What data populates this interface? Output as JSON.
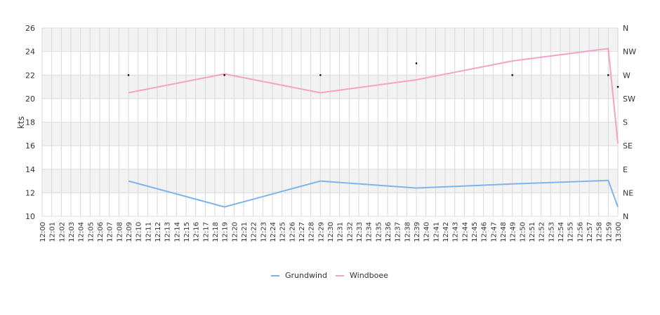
{
  "chart_data": {
    "type": "line",
    "ylabel": "kts",
    "ylim": [
      10,
      26
    ],
    "y_ticks": [
      10,
      12,
      14,
      16,
      18,
      20,
      22,
      24,
      26
    ],
    "x_start_label": "12:00",
    "x_tick_labels": [
      "12:00",
      "12:01",
      "12:02",
      "12:03",
      "12:04",
      "12:05",
      "12:06",
      "12:07",
      "12:08",
      "12:09",
      "12:10",
      "12:11",
      "12:12",
      "12:13",
      "12:14",
      "12:15",
      "12:16",
      "12:17",
      "12:18",
      "12:19",
      "12:20",
      "12:21",
      "12:22",
      "12:23",
      "12:24",
      "12:25",
      "12:26",
      "12:27",
      "12:28",
      "12:29",
      "12:30",
      "12:31",
      "12:32",
      "12:33",
      "12:34",
      "12:35",
      "12:36",
      "12:37",
      "12:38",
      "12:39",
      "12:40",
      "12:41",
      "12:42",
      "12:43",
      "12:44",
      "12:45",
      "12:46",
      "12:47",
      "12:48",
      "12:49",
      "12:50",
      "12:51",
      "12:52",
      "12:53",
      "12:54",
      "12:55",
      "12:56",
      "12:57",
      "12:58",
      "12:59",
      "13:00"
    ],
    "right_axis_labels": [
      "N",
      "NE",
      "E",
      "SE",
      "S",
      "SW",
      "W",
      "NW",
      "N"
    ],
    "grid": true,
    "legend_position": "bottom",
    "series": [
      {
        "name": "Grundwind",
        "color": "#7cb5ec",
        "points": [
          {
            "x": "12:09",
            "y": 13.0
          },
          {
            "x": "12:19",
            "y": 10.8
          },
          {
            "x": "12:29",
            "y": 13.0
          },
          {
            "x": "12:39",
            "y": 12.4
          },
          {
            "x": "12:49",
            "y": 12.75
          },
          {
            "x": "12:59",
            "y": 13.05
          },
          {
            "x": "13:00",
            "y": 10.8
          }
        ]
      },
      {
        "name": "Windboee",
        "color": "#f7a1c4",
        "points": [
          {
            "x": "12:09",
            "y": 20.5
          },
          {
            "x": "12:19",
            "y": 22.1
          },
          {
            "x": "12:29",
            "y": 20.5
          },
          {
            "x": "12:39",
            "y": 21.6
          },
          {
            "x": "12:49",
            "y": 23.2
          },
          {
            "x": "12:59",
            "y": 24.25
          },
          {
            "x": "13:00",
            "y": 16.2
          }
        ]
      }
    ],
    "direction_markers": [
      {
        "x": "12:09",
        "direction": "W"
      },
      {
        "x": "12:19",
        "direction": "W"
      },
      {
        "x": "12:29",
        "direction": "W"
      },
      {
        "x": "12:39",
        "direction": "WNW"
      },
      {
        "x": "12:49",
        "direction": "W"
      },
      {
        "x": "12:59",
        "direction": "W"
      },
      {
        "x": "13:00",
        "direction": "WSW"
      }
    ]
  }
}
